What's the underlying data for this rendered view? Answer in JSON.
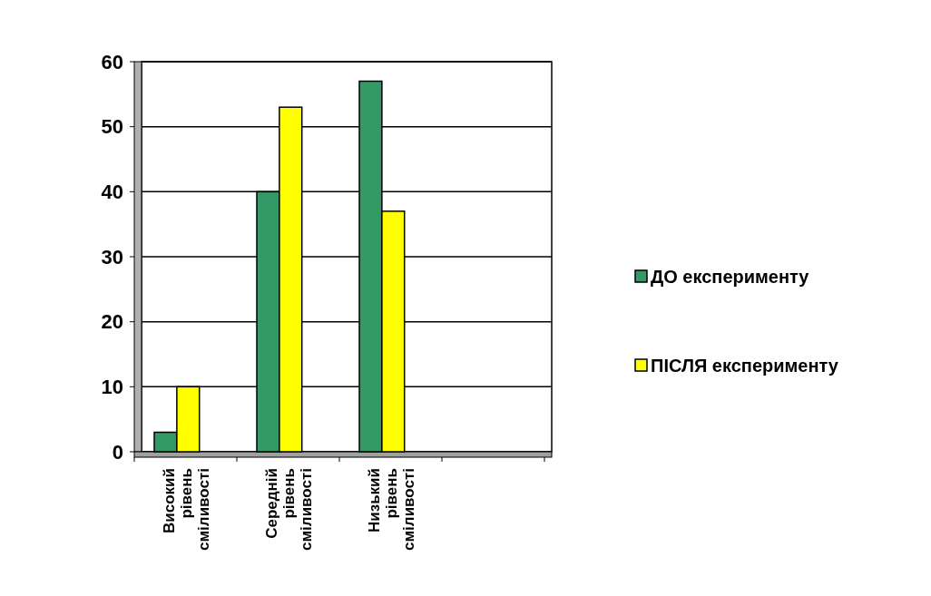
{
  "chart_data": {
    "type": "bar",
    "categories": [
      "Високий рівень сміливості",
      "Середній рівень сміливості",
      "Низький рівень сміливості",
      null
    ],
    "series": [
      {
        "name": "ДО експерименту",
        "color": "#339966",
        "values": [
          3,
          40,
          57,
          null
        ]
      },
      {
        "name": "ПІСЛЯ експерименту",
        "color": "#ffff00",
        "values": [
          10,
          53,
          37,
          null
        ]
      }
    ],
    "ylim": [
      0,
      60
    ],
    "yticks": [
      0,
      10,
      20,
      30,
      40,
      50,
      60
    ],
    "grid": "y",
    "legend": "right"
  }
}
